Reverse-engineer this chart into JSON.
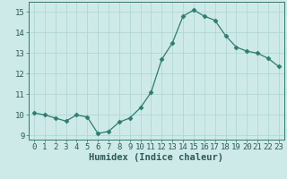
{
  "x": [
    0,
    1,
    2,
    3,
    4,
    5,
    6,
    7,
    8,
    9,
    10,
    11,
    12,
    13,
    14,
    15,
    16,
    17,
    18,
    19,
    20,
    21,
    22,
    23
  ],
  "y": [
    10.1,
    10.0,
    9.85,
    9.7,
    10.0,
    9.9,
    9.1,
    9.2,
    9.65,
    9.85,
    10.35,
    11.1,
    12.7,
    13.5,
    14.8,
    15.1,
    14.8,
    14.6,
    13.85,
    13.3,
    13.1,
    13.0,
    12.75,
    12.35
  ],
  "line_color": "#2d7d6e",
  "marker": "D",
  "marker_size": 2.5,
  "bg_color": "#ceeae8",
  "grid_color": "#b0d8d5",
  "xlabel": "Humidex (Indice chaleur)",
  "ylim": [
    8.8,
    15.5
  ],
  "xlim": [
    -0.5,
    23.5
  ],
  "yticks": [
    9,
    10,
    11,
    12,
    13,
    14,
    15
  ],
  "xticks": [
    0,
    1,
    2,
    3,
    4,
    5,
    6,
    7,
    8,
    9,
    10,
    11,
    12,
    13,
    14,
    15,
    16,
    17,
    18,
    19,
    20,
    21,
    22,
    23
  ],
  "tick_label_fontsize": 6.5,
  "xlabel_fontsize": 7.5
}
